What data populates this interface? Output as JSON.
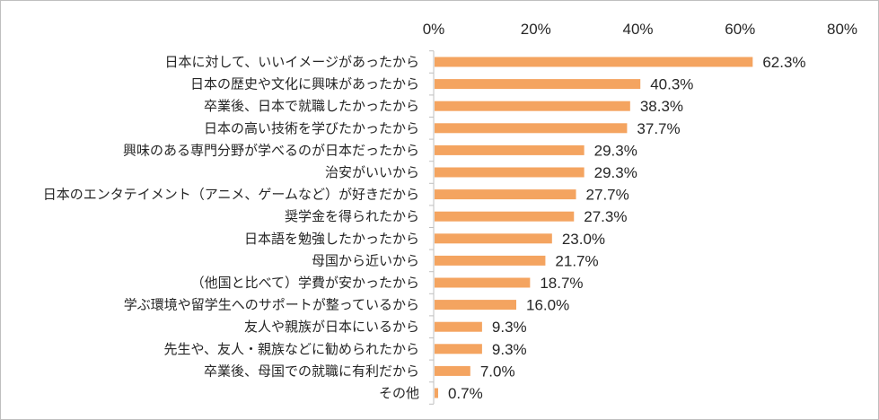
{
  "chart_data": {
    "type": "bar",
    "orientation": "horizontal",
    "title": "",
    "xlabel": "",
    "ylabel": "",
    "xlim": [
      0,
      80
    ],
    "x_ticks": [
      0,
      20,
      40,
      60,
      80
    ],
    "x_tick_labels": [
      "0%",
      "20%",
      "40%",
      "60%",
      "80%"
    ],
    "axis_position": "top",
    "grid": false,
    "bar_color": "#F4A460",
    "categories": [
      "日本に対して、いいイメージがあったから",
      "日本の歴史や文化に興味があったから",
      "卒業後、日本で就職したかったから",
      "日本の高い技術を学びたかったから",
      "興味のある専門分野が学べるのが日本だったから",
      "治安がいいから",
      "日本のエンタテイメント（アニメ、ゲームなど）が好きだから",
      "奨学金を得られたから",
      "日本語を勉強したかったから",
      "母国から近いから",
      "（他国と比べて）学費が安かったから",
      "学ぶ環境や留学生へのサポートが整っているから",
      "友人や親族が日本にいるから",
      "先生や、友人・親族などに勧められたから",
      "卒業後、母国での就職に有利だから",
      "その他"
    ],
    "values": [
      62.3,
      40.3,
      38.3,
      37.7,
      29.3,
      29.3,
      27.7,
      27.3,
      23.0,
      21.7,
      18.7,
      16.0,
      9.3,
      9.3,
      7.0,
      0.7
    ],
    "value_labels": [
      "62.3%",
      "40.3%",
      "38.3%",
      "37.7%",
      "29.3%",
      "29.3%",
      "27.7%",
      "27.3%",
      "23.0%",
      "21.7%",
      "18.7%",
      "16.0%",
      "9.3%",
      "9.3%",
      "7.0%",
      "0.7%"
    ]
  }
}
